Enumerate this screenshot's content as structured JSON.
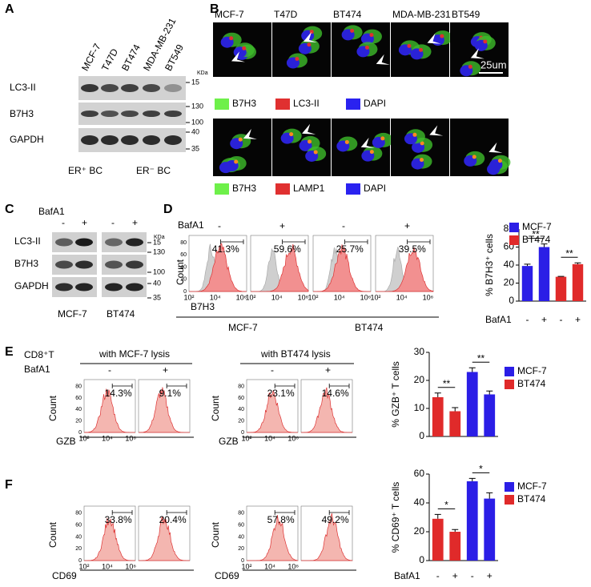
{
  "panel_labels": [
    "A",
    "B",
    "C",
    "D",
    "E",
    "F"
  ],
  "panel_a": {
    "lanes": [
      "MCF-7",
      "T47D",
      "BT474",
      "MDA-MB-231",
      "BT549"
    ],
    "rows": [
      "LC3-II",
      "B7H3",
      "GAPDH"
    ],
    "kda_unit": "KDa",
    "kda_markers": [
      "15",
      "130",
      "100",
      "40",
      "35"
    ],
    "groups": [
      "ER⁺ BC",
      "ER⁻ BC"
    ]
  },
  "panel_b": {
    "cell_lines": [
      "MCF-7",
      "T47D",
      "BT474",
      "MDA-MB-231",
      "BT549"
    ],
    "scale_bar": "25um",
    "legend_top": [
      "B7H3",
      "LC3-II",
      "DAPI"
    ],
    "legend_bottom": [
      "B7H3",
      "LAMP1",
      "DAPI"
    ]
  },
  "panel_c": {
    "treatment": "BafA1",
    "signs": [
      "-",
      "+",
      "-",
      "+"
    ],
    "rows": [
      "LC3-II",
      "B7H3",
      "GAPDH"
    ],
    "kda_unit": "KDa",
    "kda_markers": [
      "15",
      "130",
      "100",
      "40",
      "35"
    ],
    "groups": [
      "MCF-7",
      "BT474"
    ]
  },
  "panel_d": {
    "treatment": "BafA1",
    "signs": [
      "-",
      "+",
      "-",
      "+"
    ],
    "percentages": [
      "41.3%",
      "59.6%",
      "25.7%",
      "39.5%"
    ],
    "y_axis_label": "Count",
    "y_ticks": [
      "0",
      "20",
      "40",
      "60",
      "80"
    ],
    "x_ticks": [
      "10²",
      "10⁴",
      "10⁶"
    ],
    "marker": "B7H3",
    "groups": [
      "MCF-7",
      "BT474"
    ]
  },
  "panel_e": {
    "cells": "CD8⁺T",
    "treatment": "BafA1",
    "groups": [
      "with MCF-7 lysis",
      "with BT474 lysis"
    ],
    "signs": [
      "-",
      "+",
      "-",
      "+"
    ],
    "percentages": [
      "14.3%",
      "9.1%",
      "23.1%",
      "14.6%"
    ],
    "y_axis_label": "Count",
    "y_ticks": [
      "0",
      "20",
      "40",
      "60",
      "80"
    ],
    "x_ticks": [
      "10²",
      "10⁴",
      "10⁶"
    ],
    "marker": "GZB"
  },
  "panel_f": {
    "percentages": [
      "33.8%",
      "20.4%",
      "57.8%",
      "49.2%"
    ],
    "y_axis_label": "Count",
    "y_ticks": [
      "0",
      "20",
      "40",
      "60",
      "80"
    ],
    "x_ticks": [
      "10²",
      "10⁴",
      "10⁶"
    ],
    "marker": "CD69"
  },
  "chart_data": [
    {
      "type": "bar",
      "ylabel": "% B7H3⁺ cells",
      "xlabel": "BafA1",
      "categories": [
        "-",
        "+",
        "-",
        "+"
      ],
      "series": [
        {
          "name": "MCF-7",
          "color": "#2b1ee6",
          "values": [
            39,
            60,
            null,
            null
          ],
          "errors": [
            2,
            3.5,
            null,
            null
          ]
        },
        {
          "name": "BT474",
          "color": "#e02a2a",
          "values": [
            null,
            null,
            27,
            41
          ],
          "errors": [
            null,
            null,
            0.5,
            1.5
          ]
        }
      ],
      "ylim": [
        0,
        80
      ],
      "yticks": [
        0,
        20,
        40,
        60,
        80
      ],
      "annotations": [
        "**",
        "**"
      ]
    },
    {
      "type": "bar",
      "ylabel": "% GZB⁺ T cells",
      "categories": [
        null,
        null,
        null,
        null
      ],
      "series": [
        {
          "name": "MCF-7",
          "color": "#2b1ee6",
          "values": [
            null,
            null,
            23,
            15
          ],
          "errors": [
            null,
            null,
            1.5,
            1.2
          ]
        },
        {
          "name": "BT474",
          "color": "#e02a2a",
          "values": [
            14,
            9,
            null,
            null
          ],
          "errors": [
            1.5,
            1.3,
            null,
            null
          ]
        }
      ],
      "ylim": [
        0,
        30
      ],
      "yticks": [
        0,
        10,
        20,
        30
      ],
      "annotations": [
        "**",
        "**"
      ]
    },
    {
      "type": "bar",
      "ylabel": "% CD69⁺ T cells",
      "xlabel": "BafA1",
      "categories": [
        "-",
        "+",
        "-",
        "+"
      ],
      "series": [
        {
          "name": "MCF-7",
          "color": "#2b1ee6",
          "values": [
            null,
            null,
            55,
            43
          ],
          "errors": [
            null,
            null,
            2,
            4
          ]
        },
        {
          "name": "BT474",
          "color": "#e02a2a",
          "values": [
            29,
            20,
            null,
            null
          ],
          "errors": [
            3,
            1.5,
            null,
            null
          ]
        }
      ],
      "ylim": [
        0,
        60
      ],
      "yticks": [
        0,
        20,
        40,
        60
      ],
      "annotations": [
        "*",
        "*"
      ]
    }
  ]
}
